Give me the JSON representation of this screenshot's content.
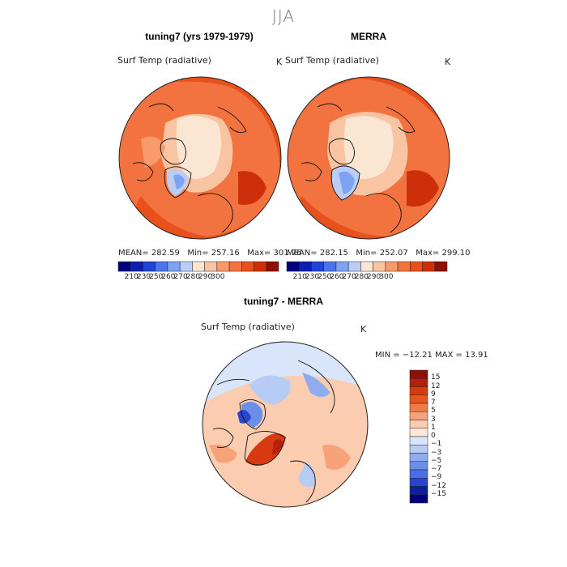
{
  "page": {
    "season": "JJA"
  },
  "panels": [
    {
      "title": "tuning7 (yrs 1979-1979)",
      "variable": "Surf Temp (radiative)",
      "units": "K",
      "stats": {
        "mean_label": "MEAN=",
        "mean": "282.59",
        "min_label": "Min=",
        "min": "257.16",
        "max_label": "Max=",
        "max": "301.76"
      },
      "colorbar_labels": [
        "210",
        "230",
        "250",
        "260",
        "270",
        "280",
        "290",
        "300"
      ]
    },
    {
      "title": "MERRA",
      "variable": "Surf Temp (radiative)",
      "units": "K",
      "stats": {
        "mean_label": "MEAN=",
        "mean": "282.15",
        "min_label": "Min=",
        "min": "252.07",
        "max_label": "Max=",
        "max": "299.10"
      },
      "colorbar_labels": [
        "210",
        "230",
        "250",
        "260",
        "270",
        "280",
        "290",
        "300"
      ]
    }
  ],
  "diff": {
    "title": "tuning7 - MERRA",
    "variable": "Surf Temp (radiative)",
    "units": "K",
    "min_label": "MIN =",
    "min": "−12.21",
    "max_label": "MAX =",
    "max": "13.91",
    "colorbar_labels": [
      "15",
      "12",
      "9",
      "7",
      "5",
      "3",
      "1",
      "0",
      "−1",
      "−3",
      "−5",
      "−7",
      "−9",
      "−12",
      "−15"
    ]
  },
  "colors": {
    "abs_scale": [
      "#00007f",
      "#0a1fb0",
      "#1f45d6",
      "#4a74ea",
      "#7ea3f2",
      "#b9cdf6",
      "#fbe6d4",
      "#f9c4a2",
      "#f79a6c",
      "#f2733f",
      "#e8501c",
      "#cc2f0a",
      "#8e1004"
    ],
    "diff_scale": [
      "#8e1004",
      "#b5200a",
      "#d83a10",
      "#e8551e",
      "#f27a48",
      "#f8a27a",
      "#fbccb0",
      "#fde8d8",
      "#d9e5fa",
      "#b6ccf4",
      "#8fadee",
      "#6b8fe8",
      "#4a6fe2",
      "#2745cf",
      "#0c1fa0",
      "#00007a"
    ]
  }
}
